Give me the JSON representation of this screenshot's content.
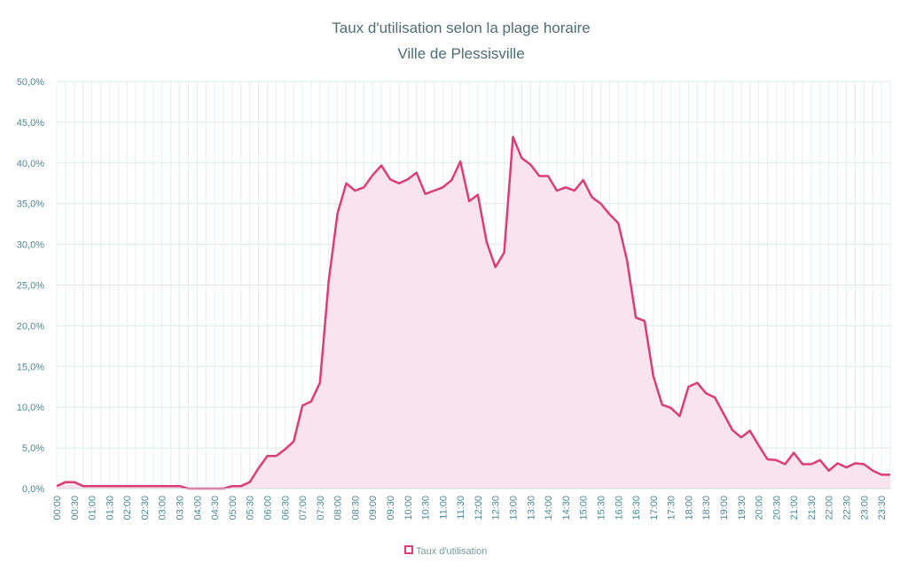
{
  "chart_data": {
    "type": "area",
    "title": "Taux d'utilisation selon la plage horaire",
    "subtitle": "Ville de Plessisville",
    "categories": [
      "00:00",
      null,
      "00:30",
      null,
      "01:00",
      null,
      "01:30",
      null,
      "02:00",
      null,
      "02:30",
      null,
      "03:00",
      null,
      "03:30",
      null,
      "04:00",
      null,
      "04:30",
      null,
      "05:00",
      null,
      "05:30",
      null,
      "06:00",
      null,
      "06:30",
      null,
      "07:00",
      null,
      "07:30",
      null,
      "08:00",
      null,
      "08:30",
      null,
      "09:00",
      null,
      "09:30",
      null,
      "10:00",
      null,
      "10:30",
      null,
      "11:00",
      null,
      "11:30",
      null,
      "12:00",
      null,
      "12:30",
      null,
      "13:00",
      null,
      "13:30",
      null,
      "14:00",
      null,
      "14:30",
      null,
      "15:00",
      null,
      "15:30",
      null,
      "16:00",
      null,
      "16:30",
      null,
      "17:00",
      null,
      "17:30",
      null,
      "18:00",
      null,
      "18:30",
      null,
      "19:00",
      null,
      "19:30",
      null,
      "20:00",
      null,
      "20:30",
      null,
      "21:00",
      null,
      "21:30",
      null,
      "22:00",
      null,
      "22:30",
      null,
      "23:00",
      null,
      "23:30",
      null
    ],
    "series": [
      {
        "name": "Taux d'utilisation",
        "color": "#dc3d76",
        "fill": "#f9e3ec",
        "values": [
          0.3,
          0.8,
          0.8,
          0.3,
          0.3,
          0.3,
          0.3,
          0.3,
          0.3,
          0.3,
          0.3,
          0.3,
          0.3,
          0.3,
          0.3,
          0,
          0,
          0,
          0,
          0,
          0.3,
          0.3,
          0.8,
          2.5,
          4.0,
          4.0,
          4.8,
          5.8,
          10.2,
          10.7,
          13.0,
          25.5,
          33.8,
          37.5,
          36.6,
          37.0,
          38.5,
          39.7,
          38.0,
          37.5,
          38.0,
          38.8,
          36.2,
          36.6,
          37.0,
          37.9,
          40.2,
          35.3,
          36.1,
          30.3,
          27.2,
          29.0,
          43.2,
          40.6,
          39.8,
          38.4,
          38.4,
          36.6,
          37.0,
          36.6,
          37.9,
          35.8,
          35.0,
          33.7,
          32.6,
          28.0,
          21.0,
          20.6,
          13.8,
          10.3,
          9.9,
          8.9,
          12.5,
          13.0,
          11.7,
          11.2,
          9.2,
          7.2,
          6.3,
          7.1,
          5.3,
          3.6,
          3.5,
          3.0,
          4.4,
          3.0,
          3.0,
          3.5,
          2.2,
          3.1,
          2.6,
          3.1,
          3.0,
          2.2,
          1.7,
          1.7
        ]
      }
    ],
    "ylim": [
      0,
      50
    ],
    "yticks": [
      {
        "value": 0,
        "label": "0,0%"
      },
      {
        "value": 5,
        "label": "5,0%"
      },
      {
        "value": 10,
        "label": "10,0%"
      },
      {
        "value": 15,
        "label": "15,0%"
      },
      {
        "value": 20,
        "label": "20,0%"
      },
      {
        "value": 25,
        "label": "25,0%"
      },
      {
        "value": 30,
        "label": "30,0%"
      },
      {
        "value": 35,
        "label": "35,0%"
      },
      {
        "value": 40,
        "label": "40,0%"
      },
      {
        "value": 45,
        "label": "45,0%"
      },
      {
        "value": 50,
        "label": "50,0%"
      }
    ],
    "grid": true,
    "legend": "bottom"
  }
}
